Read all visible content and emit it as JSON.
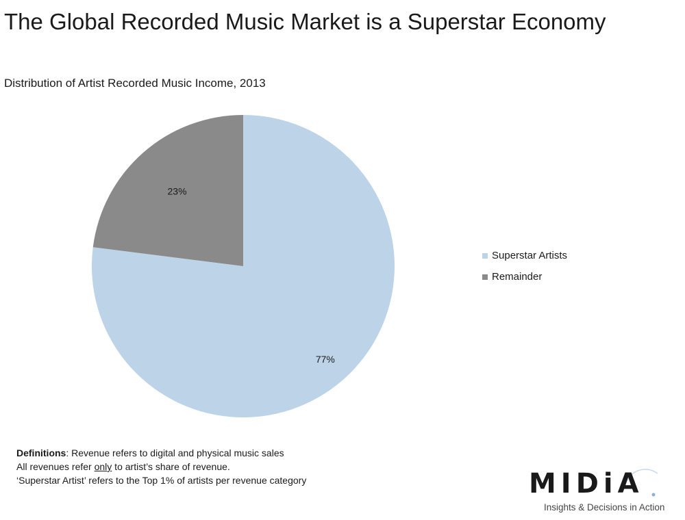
{
  "header": {
    "title": "The Global Recorded Music Market is a Superstar Economy",
    "subtitle": "Distribution of Artist Recorded Music Income, 2013"
  },
  "chart_data": {
    "type": "pie",
    "title": "The Global Recorded Music Market is a Superstar Economy",
    "subtitle": "Distribution of Artist Recorded Music Income, 2013",
    "start_angle_deg": 0,
    "direction": "clockwise",
    "legend_placement": "right",
    "slices": [
      {
        "name": "Superstar Artists",
        "value": 77,
        "label": "77%",
        "color": "#bdd3e8"
      },
      {
        "name": "Remainder",
        "value": 23,
        "label": "23%",
        "color": "#8a8a8a"
      }
    ]
  },
  "definitions": {
    "line1_term": "Definitions",
    "line1_rest": ": Revenue refers to digital and physical music sales",
    "line2_a": "All revenues refer ",
    "line2_only": "only",
    "line2_b": " to artist’s share of revenue.",
    "line3": "‘Superstar Artist’ refers to the Top 1% of artists per revenue category"
  },
  "logo": {
    "word": "MIDiA",
    "tagline": "Insights & Decisions in Action",
    "accent_color": "#8fb0d6"
  }
}
